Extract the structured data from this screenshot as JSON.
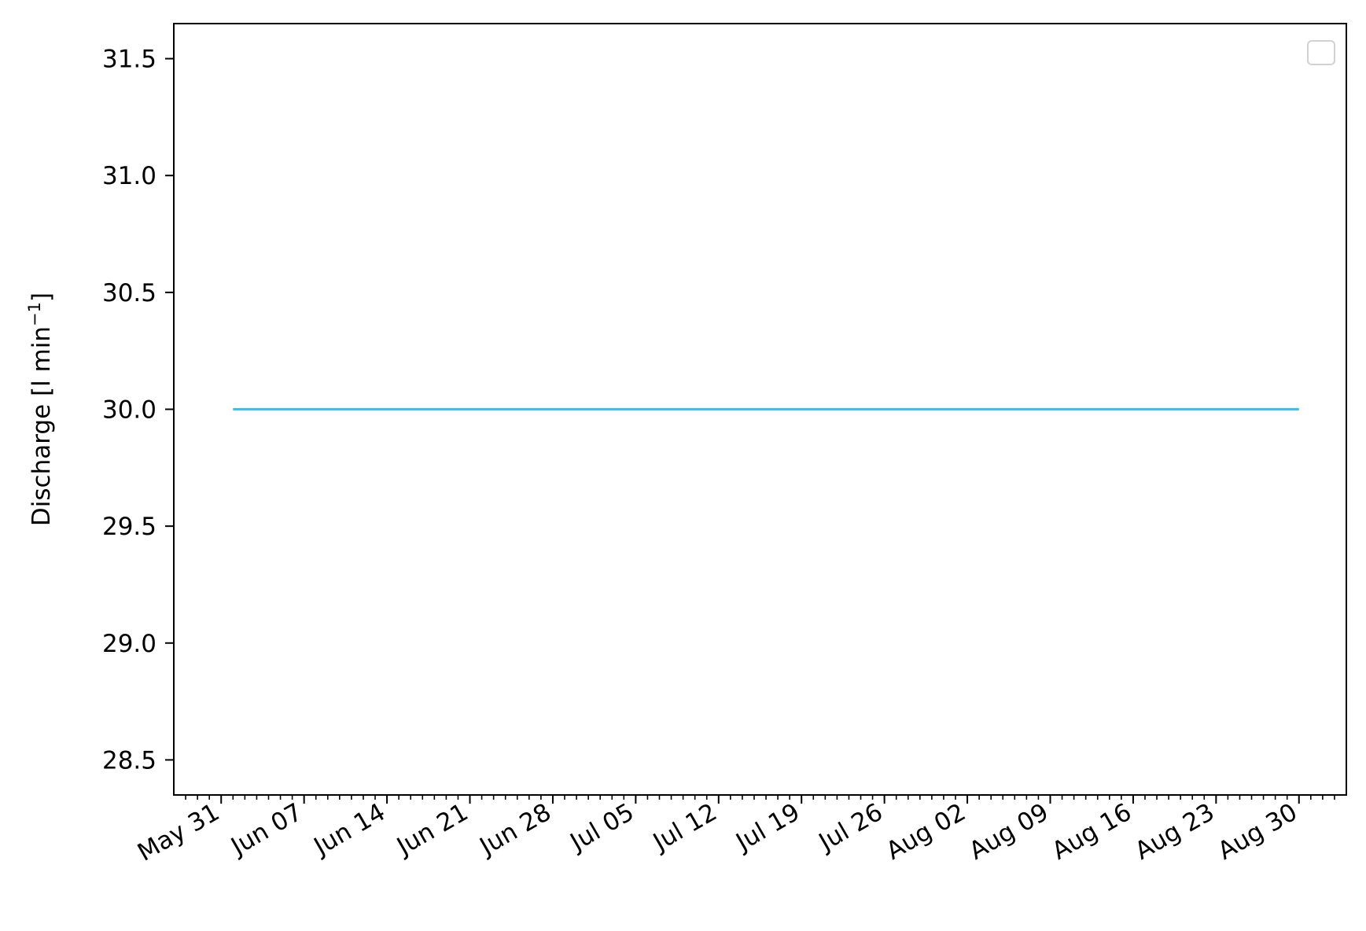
{
  "chart_data": {
    "type": "line",
    "title": "",
    "xlabel": "",
    "ylabel": "Discharge [l min",
    "ylabel_superscript": "−1",
    "ylabel_close": "]",
    "x_tick_labels": [
      "May 31",
      "Jun 07",
      "Jun 14",
      "Jun 21",
      "Jun 28",
      "Jul 05",
      "Jul 12",
      "Jul 19",
      "Jul 26",
      "Aug 02",
      "Aug 09",
      "Aug 16",
      "Aug 23",
      "Aug 30"
    ],
    "x_tick_dates": [
      "2021-05-31",
      "2021-06-07",
      "2021-06-14",
      "2021-06-21",
      "2021-06-28",
      "2021-07-05",
      "2021-07-12",
      "2021-07-19",
      "2021-07-26",
      "2021-08-02",
      "2021-08-09",
      "2021-08-16",
      "2021-08-23",
      "2021-08-30"
    ],
    "x_range": [
      "2021-05-27",
      "2021-09-03"
    ],
    "y_ticks": [
      28.5,
      29.0,
      29.5,
      30.0,
      30.5,
      31.0,
      31.5
    ],
    "y_tick_labels": [
      "28.5",
      "29.0",
      "29.5",
      "30.0",
      "30.5",
      "31.0",
      "31.5"
    ],
    "ylim": [
      28.35,
      31.65
    ],
    "grid": false,
    "legend": {
      "position": "top-right",
      "entries": []
    },
    "series": [
      {
        "color": "#3bbdf7",
        "x": [
          "2021-06-01",
          "2021-08-30"
        ],
        "y": [
          30.0,
          30.0
        ]
      }
    ]
  }
}
